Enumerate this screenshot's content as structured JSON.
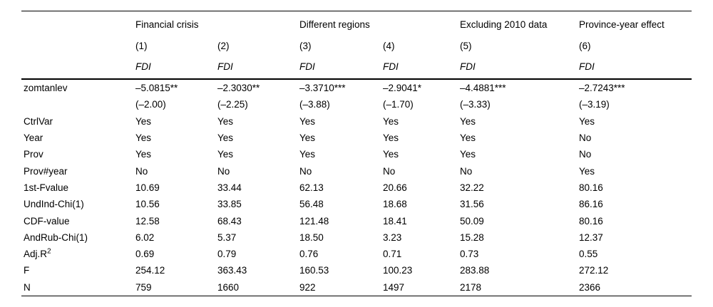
{
  "table": {
    "group_headers": [
      {
        "label": "Financial crisis",
        "span": 2
      },
      {
        "label": "Different regions",
        "span": 2
      },
      {
        "label": "Excluding 2010 data",
        "span": 1
      },
      {
        "label": "Province-year effect",
        "span": 1
      }
    ],
    "column_numbers": [
      "(1)",
      "(2)",
      "(3)",
      "(4)",
      "(5)",
      "(6)"
    ],
    "dep_var": [
      "FDI",
      "FDI",
      "FDI",
      "FDI",
      "FDI",
      "FDI"
    ],
    "rows": [
      {
        "label": "zomtanlev",
        "values": [
          "–5.0815**",
          "–2.3030**",
          "–3.3710***",
          "–2.9041*",
          "–4.4881***",
          "–2.7243***"
        ]
      },
      {
        "label": "",
        "values": [
          "(–2.00)",
          "(–2.25)",
          "(–3.88)",
          "(–1.70)",
          "(–3.33)",
          "(–3.19)"
        ]
      },
      {
        "label": "CtrlVar",
        "values": [
          "Yes",
          "Yes",
          "Yes",
          "Yes",
          "Yes",
          "Yes"
        ]
      },
      {
        "label": "Year",
        "values": [
          "Yes",
          "Yes",
          "Yes",
          "Yes",
          "Yes",
          "No"
        ]
      },
      {
        "label": "Prov",
        "values": [
          "Yes",
          "Yes",
          "Yes",
          "Yes",
          "Yes",
          "No"
        ]
      },
      {
        "label": "Prov#year",
        "values": [
          "No",
          "No",
          "No",
          "No",
          "No",
          "Yes"
        ]
      },
      {
        "label": "1st-Fvalue",
        "values": [
          "10.69",
          "33.44",
          "62.13",
          "20.66",
          "32.22",
          "80.16"
        ]
      },
      {
        "label": "UndInd-Chi(1)",
        "values": [
          "10.56",
          "33.85",
          "56.48",
          "18.68",
          "31.56",
          "86.16"
        ]
      },
      {
        "label": "CDF-value",
        "values": [
          "12.58",
          "68.43",
          "121.48",
          "18.41",
          "50.09",
          "80.16"
        ]
      },
      {
        "label": "AndRub-Chi(1)",
        "values": [
          "6.02",
          "5.37",
          "18.50",
          "3.23",
          "15.28",
          "12.37"
        ]
      },
      {
        "label": "Adj.R",
        "label_sup": "2",
        "values": [
          "0.69",
          "0.79",
          "0.76",
          "0.71",
          "0.73",
          "0.55"
        ]
      },
      {
        "label": "F",
        "values": [
          "254.12",
          "363.43",
          "160.53",
          "100.23",
          "283.88",
          "272.12"
        ]
      },
      {
        "label": "N",
        "values": [
          "759",
          "1660",
          "922",
          "1497",
          "2178",
          "2366"
        ]
      }
    ]
  }
}
